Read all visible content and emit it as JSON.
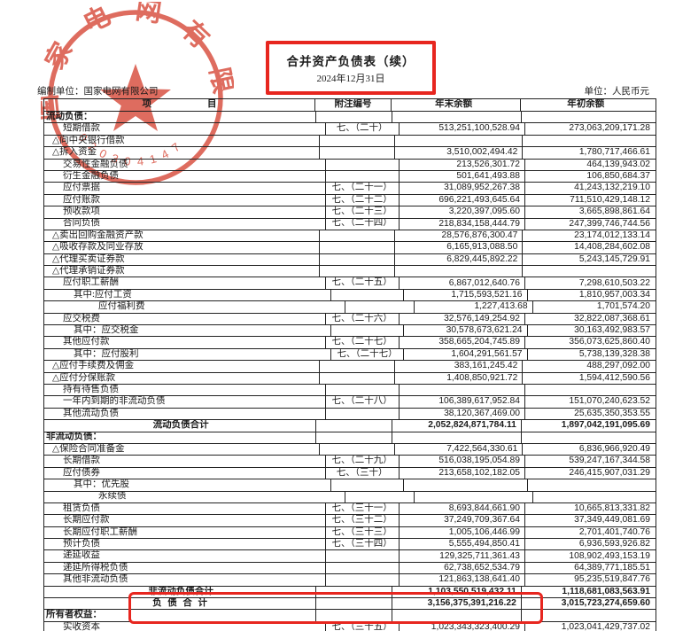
{
  "title": {
    "main": "合并资产负债表（续）",
    "date": "2024年12月31日"
  },
  "meta": {
    "prepared_by": "编制单位：国家电网有限公司",
    "unit": "单位：人民币元"
  },
  "seal": {
    "company": "国家电网有限公司",
    "serial": "020304147"
  },
  "colors": {
    "stamp_red": "#d64433",
    "box_red": "#e7261f"
  },
  "table": {
    "headers": {
      "item": "项　　　　　　目",
      "note": "附注编号",
      "ending": "年末余额",
      "beginning": "年初余额"
    },
    "rows": [
      {
        "label": "流动负债：",
        "note": "",
        "end": "",
        "begin": "",
        "type": "section",
        "indent": 0
      },
      {
        "label": "短期借款",
        "note": "七、（二十）",
        "end": "513,251,100,528.94",
        "begin": "273,063,209,171.28",
        "type": "item",
        "indent": 2
      },
      {
        "label": "△向中央银行借款",
        "note": "",
        "end": "",
        "begin": "",
        "type": "item",
        "indent": 1
      },
      {
        "label": "△拆入资金",
        "note": "",
        "end": "3,510,002,494.42",
        "begin": "1,780,717,466.61",
        "type": "item",
        "indent": 1
      },
      {
        "label": "交易性金融负债",
        "note": "",
        "end": "213,526,301.72",
        "begin": "464,139,943.02",
        "type": "item",
        "indent": 2
      },
      {
        "label": "衍生金融负债",
        "note": "",
        "end": "501,641,493.88",
        "begin": "106,850,684.37",
        "type": "item",
        "indent": 2
      },
      {
        "label": "应付票据",
        "note": "七、（二十一）",
        "end": "31,089,952,267.38",
        "begin": "41,243,132,219.10",
        "type": "item",
        "indent": 2
      },
      {
        "label": "应付账款",
        "note": "七、（二十二）",
        "end": "696,221,493,645.64",
        "begin": "711,510,429,148.12",
        "type": "item",
        "indent": 2
      },
      {
        "label": "预收款项",
        "note": "七、（二十三）",
        "end": "3,220,397,095.60",
        "begin": "3,665,898,861.64",
        "type": "item",
        "indent": 2
      },
      {
        "label": "合同负债",
        "note": "七、（二十四）",
        "end": "218,834,158,444.79",
        "begin": "247,399,746,744.56",
        "type": "item",
        "indent": 2
      },
      {
        "label": "△卖出回购金融资产款",
        "note": "",
        "end": "28,576,876,300.47",
        "begin": "23,174,012,133.14",
        "type": "item",
        "indent": 1
      },
      {
        "label": "△吸收存款及同业存放",
        "note": "",
        "end": "6,165,913,088.50",
        "begin": "14,408,284,602.08",
        "type": "item",
        "indent": 1
      },
      {
        "label": "△代理买卖证券款",
        "note": "",
        "end": "6,829,445,892.22",
        "begin": "5,243,145,729.91",
        "type": "item",
        "indent": 1
      },
      {
        "label": "△代理承销证券款",
        "note": "",
        "end": "",
        "begin": "",
        "type": "item",
        "indent": 1
      },
      {
        "label": "应付职工薪酬",
        "note": "七、（二十五）",
        "end": "6,867,012,640.76",
        "begin": "7,298,610,503.22",
        "type": "item",
        "indent": 2
      },
      {
        "label": "其中:应付工资",
        "note": "",
        "end": "1,715,593,521.16",
        "begin": "1,810,957,003.34",
        "type": "item",
        "indent": 3
      },
      {
        "label": "应付福利费",
        "note": "",
        "end": "1,227,413.68",
        "begin": "1,701,574.20",
        "type": "item",
        "indent": 4
      },
      {
        "label": "应交税费",
        "note": "七、（二十六）",
        "end": "32,576,149,254.92",
        "begin": "32,822,087,368.61",
        "type": "item",
        "indent": 2
      },
      {
        "label": "其中：应交税金",
        "note": "",
        "end": "30,578,673,621.24",
        "begin": "30,163,492,983.57",
        "type": "item",
        "indent": 3
      },
      {
        "label": "其他应付款",
        "note": "七、（二十七）",
        "end": "358,665,204,745.89",
        "begin": "356,073,625,860.40",
        "type": "item",
        "indent": 2
      },
      {
        "label": "其中：应付股利",
        "note": "七、（二十七）",
        "end": "1,604,291,561.57",
        "begin": "5,738,139,328.38",
        "type": "item",
        "indent": 3
      },
      {
        "label": "△应付手续费及佣金",
        "note": "",
        "end": "383,161,245.42",
        "begin": "488,297,092.00",
        "type": "item",
        "indent": 1
      },
      {
        "label": "△应付分保账款",
        "note": "",
        "end": "1,408,850,921.72",
        "begin": "1,594,412,590.56",
        "type": "item",
        "indent": 1
      },
      {
        "label": "持有待售负债",
        "note": "",
        "end": "",
        "begin": "",
        "type": "item",
        "indent": 2
      },
      {
        "label": "一年内到期的非流动负债",
        "note": "七、（二十八）",
        "end": "106,389,617,952.84",
        "begin": "151,070,240,623.52",
        "type": "item",
        "indent": 2
      },
      {
        "label": "其他流动负债",
        "note": "",
        "end": "38,120,367,469.00",
        "begin": "25,635,350,353.55",
        "type": "item",
        "indent": 2
      },
      {
        "label": "流动负债合计",
        "note": "",
        "end": "2,052,824,871,784.11",
        "begin": "1,897,042,191,095.69",
        "type": "subtotal",
        "indent": 0
      },
      {
        "label": "非流动负债：",
        "note": "",
        "end": "",
        "begin": "",
        "type": "section",
        "indent": 0
      },
      {
        "label": "△保险合同准备金",
        "note": "",
        "end": "7,422,564,330.61",
        "begin": "6,836,966,920.49",
        "type": "item",
        "indent": 1
      },
      {
        "label": "长期借款",
        "note": "七、（二十九）",
        "end": "516,038,195,054.89",
        "begin": "539,247,167,344.58",
        "type": "item",
        "indent": 2
      },
      {
        "label": "应付债券",
        "note": "七、（三十）",
        "end": "213,658,102,182.05",
        "begin": "246,415,907,031.29",
        "type": "item",
        "indent": 2
      },
      {
        "label": "其中：优先股",
        "note": "",
        "end": "",
        "begin": "",
        "type": "item",
        "indent": 3
      },
      {
        "label": "永续债",
        "note": "",
        "end": "",
        "begin": "",
        "type": "item",
        "indent": 4
      },
      {
        "label": "租赁负债",
        "note": "七、（三十一）",
        "end": "8,693,844,661.90",
        "begin": "10,665,813,331.82",
        "type": "item",
        "indent": 2
      },
      {
        "label": "长期应付款",
        "note": "七、（三十二）",
        "end": "37,249,709,367.64",
        "begin": "37,349,449,081.69",
        "type": "item",
        "indent": 2
      },
      {
        "label": "长期应付职工薪酬",
        "note": "七、（三十三）",
        "end": "1,005,106,446.99",
        "begin": "2,701,401,740.76",
        "type": "item",
        "indent": 2
      },
      {
        "label": "预计负债",
        "note": "七、（三十四）",
        "end": "5,555,494,850.41",
        "begin": "6,936,593,926.82",
        "type": "item",
        "indent": 2
      },
      {
        "label": "递延收益",
        "note": "",
        "end": "129,325,711,361.43",
        "begin": "108,902,493,153.19",
        "type": "item",
        "indent": 2
      },
      {
        "label": "递延所得税负债",
        "note": "",
        "end": "62,738,652,534.79",
        "begin": "64,389,771,185.51",
        "type": "item",
        "indent": 2
      },
      {
        "label": "其他非流动负债",
        "note": "",
        "end": "121,863,138,641.40",
        "begin": "95,235,519,847.76",
        "type": "item",
        "indent": 2
      },
      {
        "label": "非流动负债合计",
        "note": "",
        "end": "1,103,550,519,432.11",
        "begin": "1,118,681,083,563.91",
        "type": "subtotal",
        "indent": 0
      },
      {
        "label": "负 债 合 计",
        "note": "",
        "end": "3,156,375,391,216.22",
        "begin": "3,015,723,274,659.60",
        "type": "total",
        "indent": 0
      },
      {
        "label": "所有者权益：",
        "note": "",
        "end": "",
        "begin": "",
        "type": "section",
        "indent": 0
      },
      {
        "label": "实收资本",
        "note": "七、（三十五）",
        "end": "1,023,343,323,400.29",
        "begin": "1,023,041,429,737.02",
        "type": "item",
        "indent": 2
      }
    ]
  }
}
